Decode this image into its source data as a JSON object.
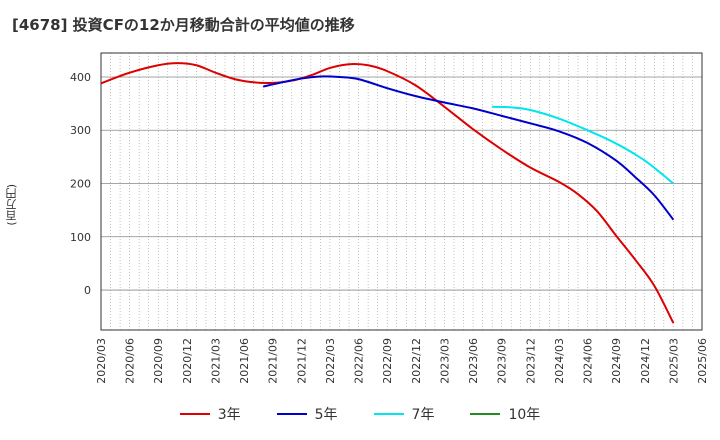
{
  "title": "[4678]  投資CFの12か月移動合計の平均値の推移",
  "chart_data": {
    "type": "line",
    "title": "[4678]  投資CFの12か月移動合計の平均値の推移",
    "ylabel": "(百万円)",
    "xlabel": "",
    "ylim": [
      -75,
      445
    ],
    "yticks": [
      0,
      100,
      200,
      300,
      400
    ],
    "x_tick_labels": [
      "2020/03",
      "2020/06",
      "2020/09",
      "2020/12",
      "2021/03",
      "2021/06",
      "2021/09",
      "2021/12",
      "2022/03",
      "2022/06",
      "2022/09",
      "2022/12",
      "2023/03",
      "2023/06",
      "2023/09",
      "2023/12",
      "2024/03",
      "2024/06",
      "2024/09",
      "2024/12",
      "2025/03",
      "2025/06"
    ],
    "grid": true,
    "legend_position": "bottom",
    "series": [
      {
        "name": "3年",
        "color": "#dd0000",
        "points": [
          [
            "2020/03",
            388
          ],
          [
            "2020/06",
            408
          ],
          [
            "2020/09",
            422
          ],
          [
            "2020/11",
            426
          ],
          [
            "2021/01",
            422
          ],
          [
            "2021/03",
            408
          ],
          [
            "2021/05",
            396
          ],
          [
            "2021/07",
            390
          ],
          [
            "2021/09",
            389
          ],
          [
            "2021/11",
            393
          ],
          [
            "2022/01",
            403
          ],
          [
            "2022/03",
            417
          ],
          [
            "2022/05",
            424
          ],
          [
            "2022/07",
            422
          ],
          [
            "2022/09",
            411
          ],
          [
            "2022/12",
            384
          ],
          [
            "2023/03",
            344
          ],
          [
            "2023/06",
            302
          ],
          [
            "2023/09",
            264
          ],
          [
            "2023/12",
            230
          ],
          [
            "2024/03",
            203
          ],
          [
            "2024/05",
            180
          ],
          [
            "2024/07",
            148
          ],
          [
            "2024/09",
            102
          ],
          [
            "2024/11",
            57
          ],
          [
            "2025/01",
            8
          ],
          [
            "2025/03",
            -62
          ]
        ]
      },
      {
        "name": "5年",
        "color": "#0000cc",
        "points": [
          [
            "2021/08",
            382
          ],
          [
            "2021/10",
            390
          ],
          [
            "2021/12",
            397
          ],
          [
            "2022/02",
            401
          ],
          [
            "2022/04",
            400
          ],
          [
            "2022/06",
            396
          ],
          [
            "2022/09",
            379
          ],
          [
            "2022/12",
            364
          ],
          [
            "2023/03",
            352
          ],
          [
            "2023/06",
            341
          ],
          [
            "2023/09",
            327
          ],
          [
            "2023/12",
            313
          ],
          [
            "2024/03",
            298
          ],
          [
            "2024/06",
            276
          ],
          [
            "2024/09",
            243
          ],
          [
            "2024/11",
            212
          ],
          [
            "2025/01",
            178
          ],
          [
            "2025/03",
            132
          ]
        ]
      },
      {
        "name": "7年",
        "color": "#00e5ee",
        "points": [
          [
            "2023/08",
            344
          ],
          [
            "2023/10",
            343
          ],
          [
            "2023/12",
            338
          ],
          [
            "2024/03",
            322
          ],
          [
            "2024/06",
            300
          ],
          [
            "2024/09",
            275
          ],
          [
            "2024/12",
            243
          ],
          [
            "2025/03",
            200
          ]
        ]
      },
      {
        "name": "10年",
        "color": "#228b22",
        "points": []
      }
    ]
  }
}
